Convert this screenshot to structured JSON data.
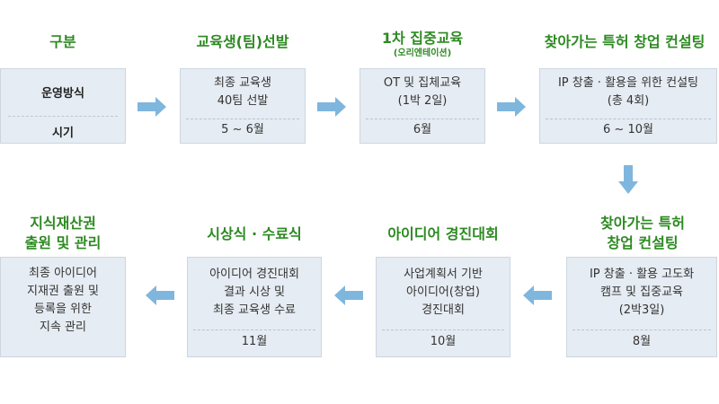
{
  "colors": {
    "title_green": "#2d8a22",
    "box_fill": "#e6ecf3",
    "arrow": "#7fb6dd"
  },
  "legend": {
    "title": "구분",
    "row1": "운영방식",
    "row2": "시기"
  },
  "steps": [
    {
      "title": "교육생(팀)선발",
      "subtitle": "",
      "desc": [
        "최종 교육생",
        "40팀 선발"
      ],
      "time": "5 ~ 6월"
    },
    {
      "title": "1차 집중교육",
      "subtitle": "(오리엔테이션)",
      "desc": [
        "OT 및 집체교육",
        "(1박 2일)"
      ],
      "time": "6월"
    },
    {
      "title": "찾아가는 특허 창업 컨설팅",
      "subtitle": "",
      "desc": [
        "IP 창출 · 활용을 위한 컨설팅",
        "(총 4회)"
      ],
      "time": "6 ~ 10월"
    },
    {
      "title": [
        "찾아가는 특허",
        "창업 컨설팅"
      ],
      "subtitle": "",
      "desc": [
        "IP 창출 · 활용 고도화",
        "캠프 및 집중교육",
        "(2박3일)"
      ],
      "time": "8월"
    },
    {
      "title": "아이디어 경진대회",
      "subtitle": "",
      "desc": [
        "사업계획서 기반",
        "아이디어(창업)",
        "경진대회"
      ],
      "time": "10월"
    },
    {
      "title": "시상식 · 수료식",
      "subtitle": "",
      "desc": [
        "아이디어 경진대회",
        "결과 시상 및",
        "최종 교육생 수료"
      ],
      "time": "11월"
    },
    {
      "title": [
        "지식재산권",
        "출원 및 관리"
      ],
      "subtitle": "",
      "desc": [
        "최종 아이디어",
        "지재권 출원 및",
        "등록을 위한",
        "지속 관리"
      ],
      "time": ""
    }
  ]
}
